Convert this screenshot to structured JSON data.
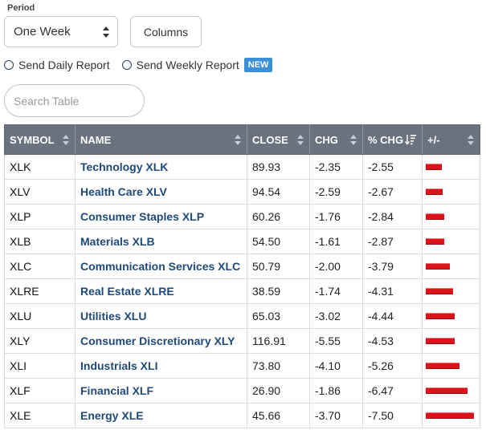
{
  "period": {
    "label": "Period",
    "selected": "One Week"
  },
  "columns_label": "Columns",
  "reports": {
    "daily": "Send Daily Report",
    "weekly": "Send Weekly Report",
    "new_badge": "NEW"
  },
  "search": {
    "placeholder": "Search Table",
    "value": ""
  },
  "table": {
    "headers": [
      "SYMBOL",
      "NAME",
      "CLOSE",
      "CHG",
      "% CHG",
      "+/-"
    ],
    "bar_color": "#d9131a",
    "rows": [
      {
        "symbol": "XLK",
        "name": "Technology XLK",
        "close": "89.93",
        "chg": "-2.35",
        "pct": "-2.55",
        "pct_value": -2.55
      },
      {
        "symbol": "XLV",
        "name": "Health Care XLV",
        "close": "94.54",
        "chg": "-2.59",
        "pct": "-2.67",
        "pct_value": -2.67
      },
      {
        "symbol": "XLP",
        "name": "Consumer Staples XLP",
        "close": "60.26",
        "chg": "-1.76",
        "pct": "-2.84",
        "pct_value": -2.84
      },
      {
        "symbol": "XLB",
        "name": "Materials XLB",
        "close": "54.50",
        "chg": "-1.61",
        "pct": "-2.87",
        "pct_value": -2.87
      },
      {
        "symbol": "XLC",
        "name": "Communication Services XLC",
        "close": "50.79",
        "chg": "-2.00",
        "pct": "-3.79",
        "pct_value": -3.79
      },
      {
        "symbol": "XLRE",
        "name": "Real Estate XLRE",
        "close": "38.59",
        "chg": "-1.74",
        "pct": "-4.31",
        "pct_value": -4.31
      },
      {
        "symbol": "XLU",
        "name": "Utilities XLU",
        "close": "65.03",
        "chg": "-3.02",
        "pct": "-4.44",
        "pct_value": -4.44
      },
      {
        "symbol": "XLY",
        "name": "Consumer Discretionary XLY",
        "close": "116.91",
        "chg": "-5.55",
        "pct": "-4.53",
        "pct_value": -4.53
      },
      {
        "symbol": "XLI",
        "name": "Industrials XLI",
        "close": "73.80",
        "chg": "-4.10",
        "pct": "-5.26",
        "pct_value": -5.26
      },
      {
        "symbol": "XLF",
        "name": "Financial XLF",
        "close": "26.90",
        "chg": "-1.86",
        "pct": "-6.47",
        "pct_value": -6.47
      },
      {
        "symbol": "XLE",
        "name": "Energy XLE",
        "close": "45.66",
        "chg": "-3.70",
        "pct": "-7.50",
        "pct_value": -7.5
      }
    ]
  }
}
